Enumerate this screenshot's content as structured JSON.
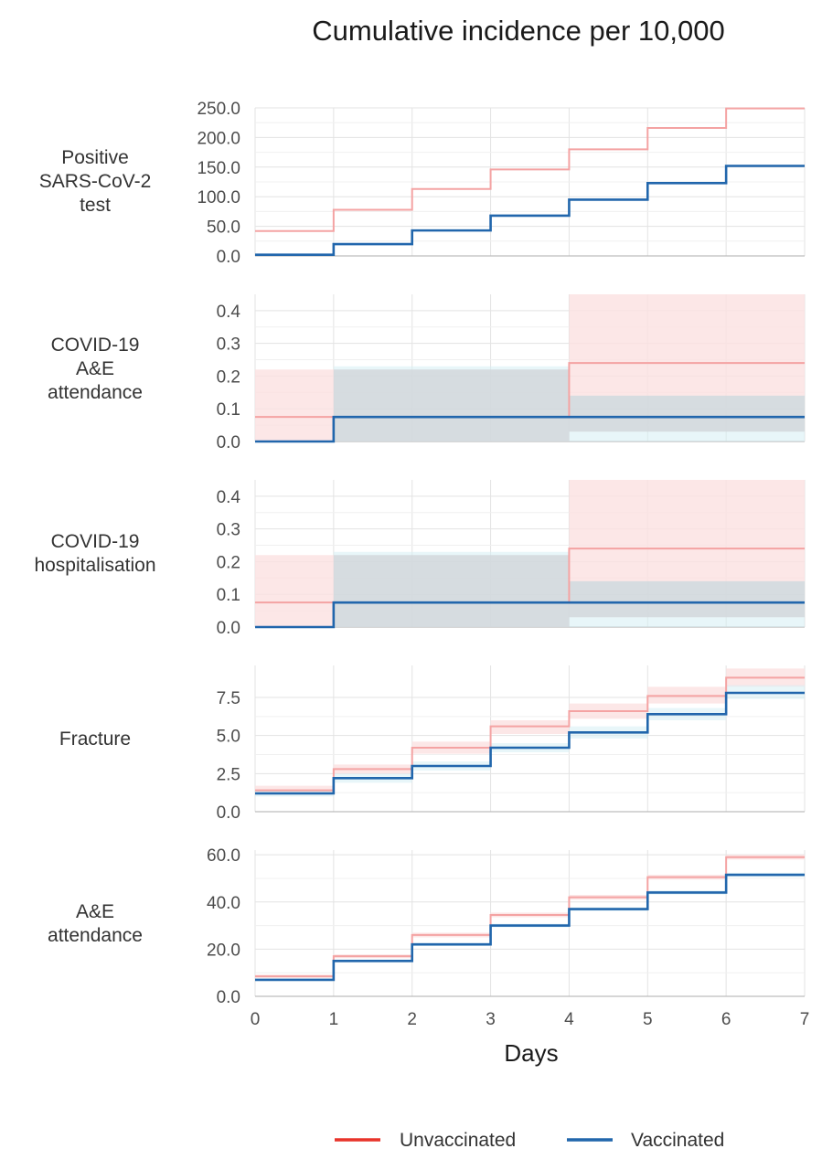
{
  "title": "Cumulative incidence per 10,000",
  "chart_data": {
    "type": "line",
    "step": true,
    "x": [
      0,
      1,
      2,
      3,
      4,
      5,
      6,
      7
    ],
    "xlabel": "Days",
    "xlim": [
      0,
      7
    ],
    "x_ticks": [
      "0",
      "1",
      "2",
      "3",
      "4",
      "5",
      "6",
      "7"
    ],
    "legend": {
      "position": "bottom-right",
      "entries": [
        {
          "label": "Unvaccinated",
          "color": "#f4a3a3"
        },
        {
          "label": "Vaccinated",
          "color": "#2166ac"
        }
      ]
    },
    "colors": {
      "unvaccinated_line": "#f4a3a3",
      "unvaccinated_band": "#fbe1e1",
      "vaccinated_line": "#2166ac",
      "vaccinated_band": "#d6eef4"
    },
    "grid": true,
    "panels": [
      {
        "label": [
          "Positive",
          "SARS-CoV-2",
          "test"
        ],
        "ylim": [
          0,
          250
        ],
        "y_ticks": [
          {
            "v": 0,
            "t": "0.0"
          },
          {
            "v": 50,
            "t": "50.0"
          },
          {
            "v": 100,
            "t": "100.0"
          },
          {
            "v": 150,
            "t": "150.0"
          },
          {
            "v": 200,
            "t": "200.0"
          },
          {
            "v": 250,
            "t": "250.0"
          }
        ],
        "series": [
          {
            "name": "Unvaccinated",
            "values": [
              42,
              78,
              113,
              146,
              180,
              216,
              249
            ]
          },
          {
            "name": "Vaccinated",
            "values": [
              2,
              20,
              43,
              68,
              95,
              123,
              152
            ]
          }
        ]
      },
      {
        "label": [
          "COVID-19",
          "A&E",
          "attendance"
        ],
        "ylim": [
          0,
          0.45
        ],
        "y_ticks": [
          {
            "v": 0,
            "t": "0.0"
          },
          {
            "v": 0.1,
            "t": "0.1"
          },
          {
            "v": 0.2,
            "t": "0.2"
          },
          {
            "v": 0.3,
            "t": "0.3"
          },
          {
            "v": 0.4,
            "t": "0.4"
          }
        ],
        "series": [
          {
            "name": "Unvaccinated",
            "values": [
              0.075,
              0.075,
              0.075,
              0.075,
              0.24,
              0.24,
              0.24
            ],
            "lower": [
              0,
              0,
              0,
              0,
              0.03,
              0.03,
              0.03
            ],
            "upper": [
              0.22,
              0.22,
              0.22,
              0.22,
              0.45,
              0.45,
              0.45
            ]
          },
          {
            "name": "Vaccinated",
            "values": [
              0,
              0.075,
              0.075,
              0.075,
              0.075,
              0.075,
              0.075
            ],
            "lower": [
              0,
              0,
              0,
              0,
              0,
              0,
              0
            ],
            "upper": [
              0,
              0.23,
              0.23,
              0.23,
              0.14,
              0.14,
              0.14
            ]
          }
        ]
      },
      {
        "label": [
          "COVID-19",
          "hospitalisation"
        ],
        "ylim": [
          0,
          0.45
        ],
        "y_ticks": [
          {
            "v": 0,
            "t": "0.0"
          },
          {
            "v": 0.1,
            "t": "0.1"
          },
          {
            "v": 0.2,
            "t": "0.2"
          },
          {
            "v": 0.3,
            "t": "0.3"
          },
          {
            "v": 0.4,
            "t": "0.4"
          }
        ],
        "series": [
          {
            "name": "Unvaccinated",
            "values": [
              0.075,
              0.075,
              0.075,
              0.075,
              0.24,
              0.24,
              0.24
            ],
            "lower": [
              0,
              0,
              0,
              0,
              0.03,
              0.03,
              0.03
            ],
            "upper": [
              0.22,
              0.22,
              0.22,
              0.22,
              0.45,
              0.45,
              0.45
            ]
          },
          {
            "name": "Vaccinated",
            "values": [
              0,
              0.075,
              0.075,
              0.075,
              0.075,
              0.075,
              0.075
            ],
            "lower": [
              0,
              0,
              0,
              0,
              0,
              0,
              0
            ],
            "upper": [
              0,
              0.23,
              0.23,
              0.23,
              0.14,
              0.14,
              0.14
            ]
          }
        ]
      },
      {
        "label": [
          "Fracture"
        ],
        "ylim": [
          0,
          9.6
        ],
        "y_ticks": [
          {
            "v": 0,
            "t": "0.0"
          },
          {
            "v": 2.5,
            "t": "2.5"
          },
          {
            "v": 5,
            "t": "5.0"
          },
          {
            "v": 7.5,
            "t": "7.5"
          }
        ],
        "series": [
          {
            "name": "Unvaccinated",
            "values": [
              1.4,
              2.8,
              4.2,
              5.6,
              6.6,
              7.6,
              8.8
            ],
            "lower": [
              1.1,
              2.5,
              3.8,
              5.1,
              6.1,
              7.1,
              8.2
            ],
            "upper": [
              1.7,
              3.1,
              4.6,
              6.0,
              7.1,
              8.2,
              9.4
            ]
          },
          {
            "name": "Vaccinated",
            "values": [
              1.2,
              2.2,
              3.0,
              4.2,
              5.2,
              6.4,
              7.8
            ],
            "lower": [
              1.0,
              1.9,
              2.7,
              3.9,
              4.8,
              6.0,
              7.4
            ],
            "upper": [
              1.4,
              2.5,
              3.3,
              4.5,
              5.6,
              6.8,
              8.3
            ]
          }
        ]
      },
      {
        "label": [
          "A&E",
          "attendance"
        ],
        "ylim": [
          0,
          62
        ],
        "y_ticks": [
          {
            "v": 0,
            "t": "0.0"
          },
          {
            "v": 20,
            "t": "20.0"
          },
          {
            "v": 40,
            "t": "40.0"
          },
          {
            "v": 60,
            "t": "60.0"
          }
        ],
        "series": [
          {
            "name": "Unvaccinated",
            "values": [
              8.5,
              17,
              26,
              34.5,
              42,
              50.5,
              59
            ],
            "lower": [
              7.8,
              16.2,
              25,
              33.5,
              41,
              49.5,
              58
            ],
            "upper": [
              9.2,
              17.8,
              27,
              35.5,
              43,
              51.5,
              60
            ]
          },
          {
            "name": "Vaccinated",
            "values": [
              7,
              15,
              22,
              30,
              37,
              44,
              51.5
            ],
            "lower": [
              6.5,
              14.4,
              21.3,
              29.2,
              36.2,
              43.1,
              50.6
            ],
            "upper": [
              7.5,
              15.6,
              22.7,
              30.8,
              37.8,
              44.9,
              52.4
            ]
          }
        ]
      }
    ]
  }
}
